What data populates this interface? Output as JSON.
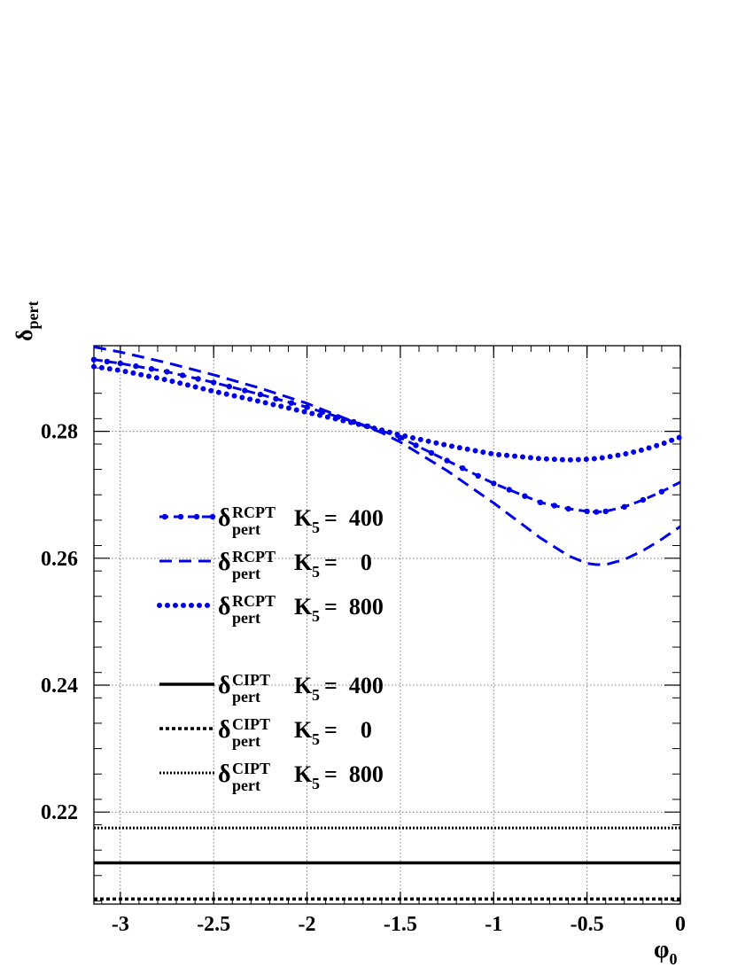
{
  "chart_data": {
    "type": "line",
    "xlabel": {
      "base": "φ",
      "sub": "0"
    },
    "ylabel": {
      "base": "δ",
      "sub": "pert"
    },
    "xlim": [
      -3.14159,
      0
    ],
    "ylim": [
      0.2055,
      0.2935
    ],
    "grid": true,
    "legend_position": "left",
    "x_ticks": [
      -3,
      -2.5,
      -2,
      -1.5,
      -1,
      -0.5,
      0
    ],
    "x_tick_labels": [
      "-3",
      "-2.5",
      "-2",
      "-1.5",
      "-1",
      "-0.5",
      "0"
    ],
    "y_ticks": [
      0.22,
      0.24,
      0.26,
      0.28
    ],
    "y_tick_labels": [
      "0.22",
      "0.24",
      "0.26",
      "0.28"
    ],
    "series": [
      {
        "key": "rcpt_400",
        "legend": {
          "delta": "δ",
          "sub": "pert",
          "sup": "RCPT",
          "k_base": "K",
          "k_sub": "5",
          "k_value": "=  400"
        },
        "color": "#0000e6",
        "style": "dash-dot-marker",
        "x": [
          -3.1416,
          -3.0,
          -2.75,
          -2.5,
          -2.25,
          -2.0,
          -1.75,
          -1.6,
          -1.5,
          -1.25,
          -1.0,
          -0.75,
          -0.6,
          -0.5,
          -0.45,
          -0.4,
          -0.3,
          -0.2,
          -0.1,
          0.0
        ],
        "values": [
          0.2913,
          0.2907,
          0.2894,
          0.2877,
          0.2858,
          0.2838,
          0.2815,
          0.2801,
          0.279,
          0.2754,
          0.2718,
          0.2688,
          0.2678,
          0.2674,
          0.2673,
          0.2674,
          0.2681,
          0.2692,
          0.2705,
          0.272
        ]
      },
      {
        "key": "rcpt_0",
        "legend": {
          "delta": "δ",
          "sub": "pert",
          "sup": "RCPT",
          "k_base": "K",
          "k_sub": "5",
          "k_value": "=    0"
        },
        "color": "#0000e6",
        "style": "dashed",
        "x": [
          -3.1416,
          -3.0,
          -2.75,
          -2.5,
          -2.25,
          -2.0,
          -1.75,
          -1.6,
          -1.5,
          -1.25,
          -1.0,
          -0.75,
          -0.6,
          -0.5,
          -0.45,
          -0.4,
          -0.3,
          -0.2,
          -0.1,
          0.0
        ],
        "values": [
          0.2933,
          0.2925,
          0.2908,
          0.2889,
          0.2868,
          0.2844,
          0.2815,
          0.2798,
          0.2783,
          0.2738,
          0.2687,
          0.2632,
          0.2604,
          0.2592,
          0.259,
          0.259,
          0.2598,
          0.2612,
          0.263,
          0.265
        ]
      },
      {
        "key": "rcpt_800",
        "legend": {
          "delta": "δ",
          "sub": "pert",
          "sup": "RCPT",
          "k_base": "K",
          "k_sub": "5",
          "k_value": "=  800"
        },
        "color": "#0000e6",
        "style": "dotted-marker",
        "x": [
          -3.1416,
          -3.0,
          -2.75,
          -2.5,
          -2.25,
          -2.0,
          -1.75,
          -1.6,
          -1.5,
          -1.25,
          -1.0,
          -0.75,
          -0.6,
          -0.5,
          -0.45,
          -0.4,
          -0.3,
          -0.2,
          -0.1,
          0.0
        ],
        "values": [
          0.2902,
          0.2896,
          0.2881,
          0.2863,
          0.2847,
          0.283,
          0.2813,
          0.2802,
          0.2794,
          0.2778,
          0.2764,
          0.2757,
          0.2755,
          0.2756,
          0.2757,
          0.2759,
          0.2764,
          0.2771,
          0.278,
          0.2791
        ]
      },
      {
        "key": "cipt_400",
        "legend": {
          "delta": "δ",
          "sub": "pert",
          "sup": "CIPT",
          "k_base": "K",
          "k_sub": "5",
          "k_value": "=  400"
        },
        "color": "#000000",
        "style": "solid",
        "x": [
          -3.1416,
          0.0
        ],
        "values": [
          0.212,
          0.212
        ]
      },
      {
        "key": "cipt_0",
        "legend": {
          "delta": "δ",
          "sub": "pert",
          "sup": "CIPT",
          "k_base": "K",
          "k_sub": "5",
          "k_value": "=    0"
        },
        "color": "#000000",
        "style": "dense-dashed",
        "x": [
          -3.1416,
          0.0
        ],
        "values": [
          0.2063,
          0.2063
        ]
      },
      {
        "key": "cipt_800",
        "legend": {
          "delta": "δ",
          "sub": "pert",
          "sup": "CIPT",
          "k_base": "K",
          "k_sub": "5",
          "k_value": "=  800"
        },
        "color": "#000000",
        "style": "fine-dotted",
        "x": [
          -3.1416,
          0.0
        ],
        "values": [
          0.2175,
          0.2175
        ]
      }
    ]
  }
}
